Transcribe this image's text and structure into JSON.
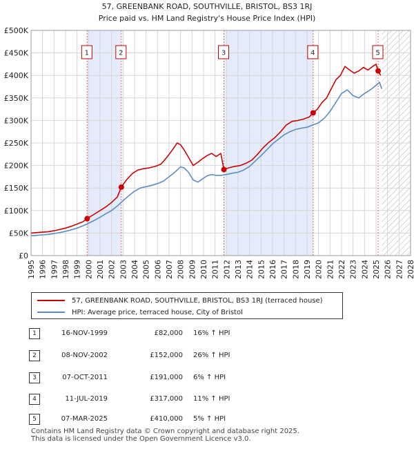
{
  "chart_data": {
    "type": "line",
    "title": "57, GREENBANK ROAD, SOUTHVILLE, BRISTOL, BS3 1RJ",
    "subtitle": "Price paid vs. HM Land Registry's House Price Index (HPI)",
    "xlim": [
      1995,
      2028
    ],
    "ylim": [
      0,
      500000
    ],
    "x_ticks": [
      "1995",
      "1996",
      "1997",
      "1998",
      "1999",
      "2000",
      "2001",
      "2002",
      "2003",
      "2004",
      "2005",
      "2006",
      "2007",
      "2008",
      "2009",
      "2010",
      "2011",
      "2012",
      "2013",
      "2014",
      "2015",
      "2016",
      "2017",
      "2018",
      "2019",
      "2020",
      "2021",
      "2022",
      "2023",
      "2024",
      "2025",
      "2026",
      "2027",
      "2028"
    ],
    "y_ticks": [
      {
        "value": 0,
        "label": "£0"
      },
      {
        "value": 50000,
        "label": "£50K"
      },
      {
        "value": 100000,
        "label": "£100K"
      },
      {
        "value": 150000,
        "label": "£150K"
      },
      {
        "value": 200000,
        "label": "£200K"
      },
      {
        "value": 250000,
        "label": "£250K"
      },
      {
        "value": 300000,
        "label": "£300K"
      },
      {
        "value": 350000,
        "label": "£350K"
      },
      {
        "value": 400000,
        "label": "£400K"
      },
      {
        "value": 450000,
        "label": "£450K"
      },
      {
        "value": 500000,
        "label": "£500K"
      }
    ],
    "shaded_ranges": [
      [
        1999.88,
        2002.85
      ],
      [
        2011.77,
        2019.53
      ]
    ],
    "hatch_from": 2025.5,
    "series": [
      {
        "name": "57, GREENBANK ROAD, SOUTHVILLE, BRISTOL, BS3 1RJ (terraced house)",
        "color": "#cc0000",
        "x": [
          1995.0,
          1995.5,
          1996.0,
          1996.5,
          1997.0,
          1997.5,
          1998.0,
          1998.5,
          1999.0,
          1999.5,
          1999.88,
          2000.5,
          2001.0,
          2001.5,
          2002.0,
          2002.5,
          2002.85,
          2003.3,
          2003.8,
          2004.3,
          2004.8,
          2005.3,
          2005.8,
          2006.3,
          2006.8,
          2007.3,
          2007.7,
          2008.0,
          2008.3,
          2008.7,
          2009.1,
          2009.5,
          2009.9,
          2010.3,
          2010.7,
          2011.1,
          2011.5,
          2011.77,
          2012.2,
          2012.7,
          2013.2,
          2013.7,
          2014.2,
          2014.7,
          2015.2,
          2015.7,
          2016.2,
          2016.7,
          2017.2,
          2017.7,
          2018.2,
          2018.7,
          2019.2,
          2019.53,
          2019.9,
          2020.3,
          2020.7,
          2021.1,
          2021.5,
          2021.9,
          2022.3,
          2022.7,
          2023.1,
          2023.5,
          2023.9,
          2024.3,
          2024.7,
          2025.0,
          2025.18,
          2025.4
        ],
        "values": [
          50000,
          51000,
          52000,
          53000,
          55000,
          58000,
          61000,
          65000,
          70000,
          75000,
          82000,
          92000,
          100000,
          108000,
          118000,
          130000,
          152000,
          168000,
          182000,
          190000,
          193000,
          195000,
          198000,
          203000,
          218000,
          235000,
          250000,
          246000,
          235000,
          218000,
          200000,
          207000,
          215000,
          222000,
          227000,
          220000,
          227000,
          191000,
          195000,
          198000,
          200000,
          205000,
          212000,
          225000,
          240000,
          252000,
          262000,
          275000,
          290000,
          298000,
          300000,
          303000,
          308000,
          317000,
          325000,
          340000,
          350000,
          370000,
          390000,
          400000,
          420000,
          412000,
          405000,
          410000,
          418000,
          412000,
          420000,
          425000,
          410000,
          400000
        ]
      },
      {
        "name": "HPI: Average price, terraced house, City of Bristol",
        "color": "#5b8bc5",
        "x": [
          1995.0,
          1995.5,
          1996.0,
          1996.5,
          1997.0,
          1997.5,
          1998.0,
          1998.5,
          1999.0,
          1999.5,
          2000.0,
          2000.5,
          2001.0,
          2001.5,
          2002.0,
          2002.5,
          2003.0,
          2003.5,
          2004.0,
          2004.5,
          2005.0,
          2005.5,
          2006.0,
          2006.5,
          2007.0,
          2007.5,
          2008.0,
          2008.3,
          2008.7,
          2009.1,
          2009.5,
          2009.9,
          2010.3,
          2010.7,
          2011.1,
          2011.5,
          2012.0,
          2012.5,
          2013.0,
          2013.5,
          2014.0,
          2014.5,
          2015.0,
          2015.5,
          2016.0,
          2016.5,
          2017.0,
          2017.5,
          2018.0,
          2018.5,
          2019.0,
          2019.5,
          2020.0,
          2020.5,
          2021.0,
          2021.5,
          2022.0,
          2022.5,
          2023.0,
          2023.5,
          2024.0,
          2024.5,
          2025.0,
          2025.3,
          2025.5
        ],
        "values": [
          44000,
          45000,
          46000,
          47000,
          49000,
          51000,
          54000,
          57000,
          61000,
          66000,
          72000,
          78000,
          85000,
          93000,
          100000,
          110000,
          122000,
          133000,
          143000,
          150000,
          153000,
          156000,
          160000,
          165000,
          175000,
          185000,
          197000,
          195000,
          185000,
          168000,
          163000,
          170000,
          177000,
          180000,
          178000,
          178000,
          180000,
          183000,
          185000,
          190000,
          198000,
          210000,
          222000,
          235000,
          248000,
          258000,
          268000,
          275000,
          280000,
          283000,
          285000,
          290000,
          295000,
          305000,
          320000,
          340000,
          360000,
          368000,
          355000,
          350000,
          360000,
          368000,
          378000,
          385000,
          370000
        ]
      }
    ],
    "sales": [
      {
        "label": "1",
        "x": 1999.88,
        "value": 82000
      },
      {
        "label": "2",
        "x": 2002.85,
        "value": 152000
      },
      {
        "label": "3",
        "x": 2011.77,
        "value": 191000
      },
      {
        "label": "4",
        "x": 2019.53,
        "value": 317000
      },
      {
        "label": "5",
        "x": 2025.18,
        "value": 410000
      }
    ]
  },
  "legend": {
    "property_label": "57, GREENBANK ROAD, SOUTHVILLE, BRISTOL, BS3 1RJ (terraced house)",
    "hpi_label": "HPI: Average price, terraced house, City of Bristol"
  },
  "sales_table": [
    {
      "num": "1",
      "date": "16-NOV-1999",
      "price": "£82,000",
      "hpi": "16% ↑ HPI"
    },
    {
      "num": "2",
      "date": "08-NOV-2002",
      "price": "£152,000",
      "hpi": "26% ↑ HPI"
    },
    {
      "num": "3",
      "date": "07-OCT-2011",
      "price": "£191,000",
      "hpi": "6% ↑ HPI"
    },
    {
      "num": "4",
      "date": "11-JUL-2019",
      "price": "£317,000",
      "hpi": "11% ↑ HPI"
    },
    {
      "num": "5",
      "date": "07-MAR-2025",
      "price": "£410,000",
      "hpi": "5% ↑ HPI"
    }
  ],
  "footer": {
    "line1": "Contains HM Land Registry data © Crown copyright and database right 2025.",
    "line2": "This data is licensed under the Open Government Licence v3.0."
  },
  "colors": {
    "property": "#cc0000",
    "hpi": "#5b8bc5",
    "shade": "#e4ebfa",
    "grid": "#d5d5d5"
  }
}
